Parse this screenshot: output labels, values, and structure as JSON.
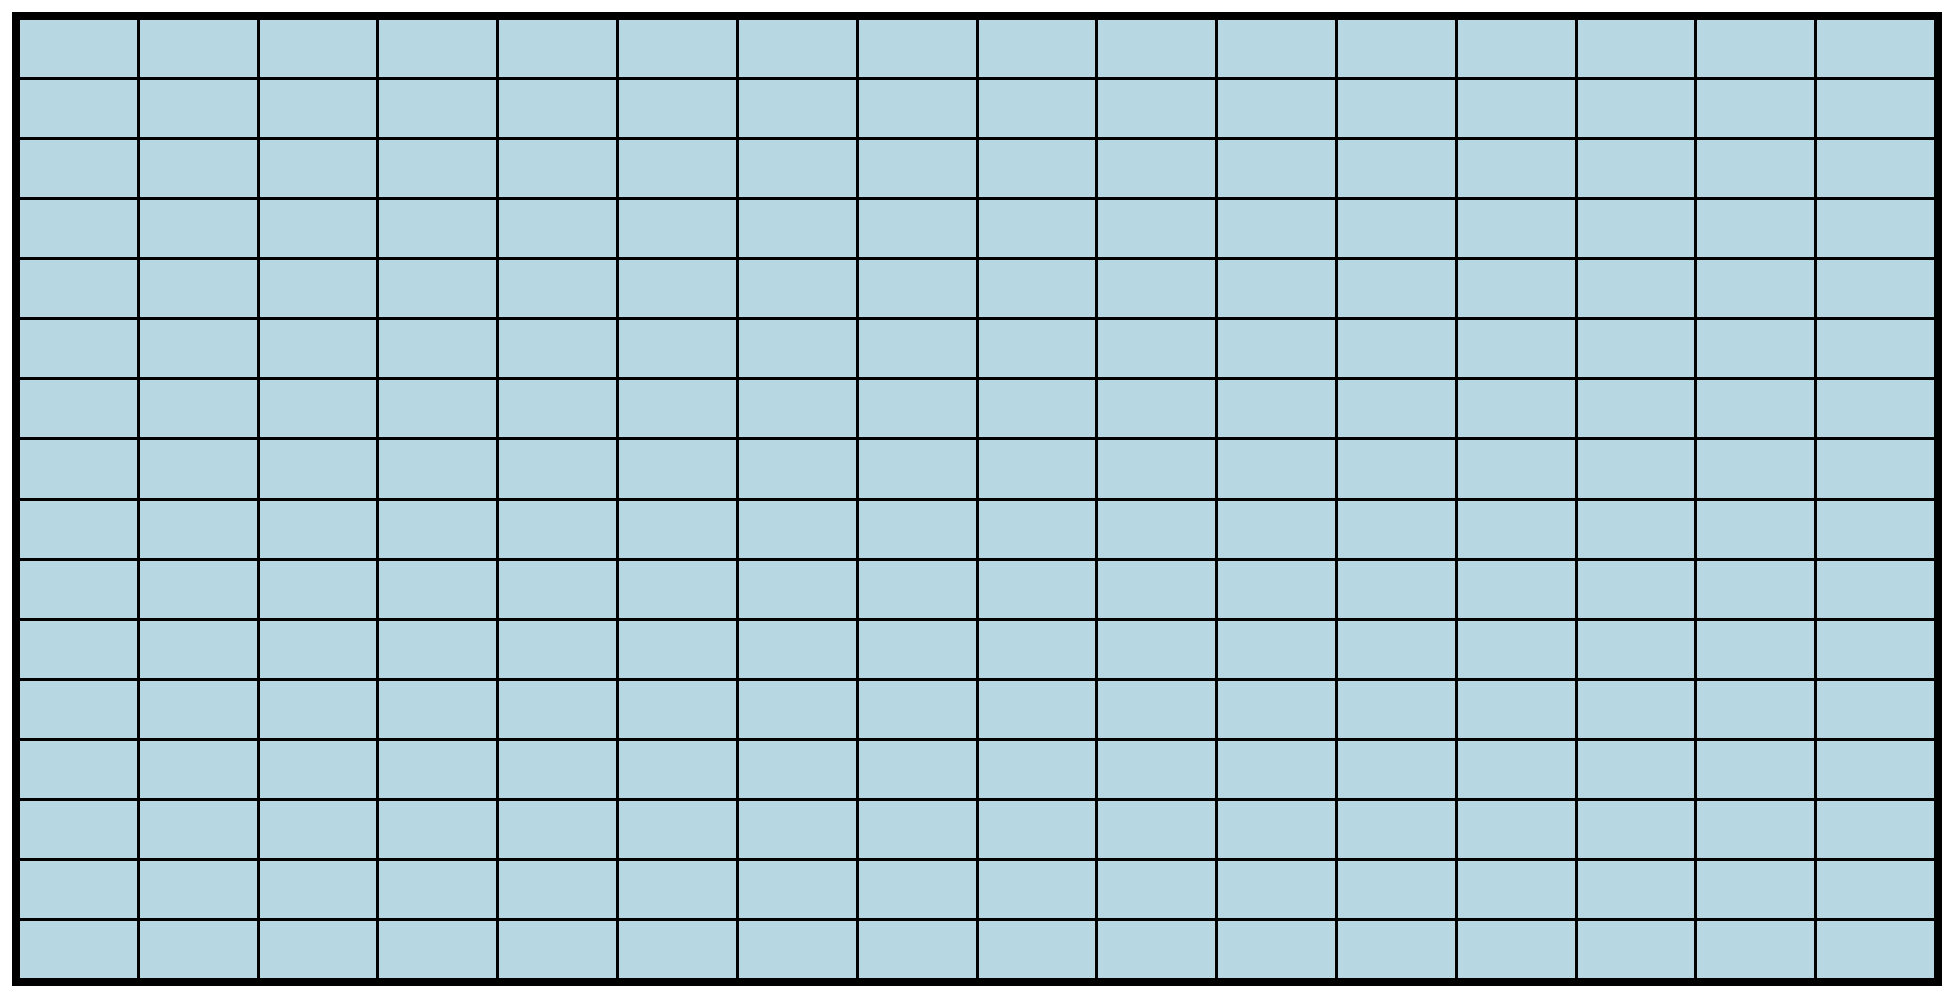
{
  "board": {
    "rows": 16,
    "columns": 16,
    "cell_state": "unrevealed",
    "colors": {
      "cell_fill": "#b7d7e3",
      "grid_line": "#000000",
      "frame": "#000000",
      "background": "#ffffff"
    }
  }
}
